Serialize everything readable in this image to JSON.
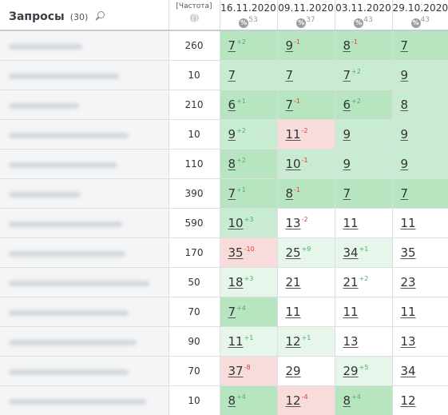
{
  "header": {
    "queries_label": "Запросы",
    "queries_count": "(30)",
    "frequency_label": "[Частота]",
    "dates": [
      {
        "date": "16.11.2020",
        "visibility": "53"
      },
      {
        "date": "09.11.2020",
        "visibility": "37"
      },
      {
        "date": "03.11.2020",
        "visibility": "43"
      },
      {
        "date": "29.10.2020",
        "visibility": "43"
      }
    ],
    "percent_symbol": "%"
  },
  "rows": [
    {
      "freq": "260",
      "cells": [
        {
          "v": "7",
          "d": "+2",
          "bg": "g1"
        },
        {
          "v": "9",
          "d": "-1",
          "bg": "g1"
        },
        {
          "v": "8",
          "d": "-1",
          "bg": "g1"
        },
        {
          "v": "7",
          "d": "",
          "bg": "g1"
        }
      ]
    },
    {
      "freq": "10",
      "cells": [
        {
          "v": "7",
          "d": "",
          "bg": "g2"
        },
        {
          "v": "7",
          "d": "",
          "bg": "g2"
        },
        {
          "v": "7",
          "d": "+2",
          "bg": "g2"
        },
        {
          "v": "9",
          "d": "",
          "bg": "g2"
        }
      ]
    },
    {
      "freq": "210",
      "cells": [
        {
          "v": "6",
          "d": "+1",
          "bg": "g1"
        },
        {
          "v": "7",
          "d": "-1",
          "bg": "g1"
        },
        {
          "v": "6",
          "d": "+2",
          "bg": "g1"
        },
        {
          "v": "8",
          "d": "",
          "bg": "g2"
        }
      ]
    },
    {
      "freq": "10",
      "cells": [
        {
          "v": "9",
          "d": "+2",
          "bg": "g2"
        },
        {
          "v": "11",
          "d": "-2",
          "bg": "r"
        },
        {
          "v": "9",
          "d": "",
          "bg": "g2"
        },
        {
          "v": "9",
          "d": "",
          "bg": "g2"
        }
      ]
    },
    {
      "freq": "110",
      "cells": [
        {
          "v": "8",
          "d": "+2",
          "bg": "g1"
        },
        {
          "v": "10",
          "d": "-1",
          "bg": "g2"
        },
        {
          "v": "9",
          "d": "",
          "bg": "g2"
        },
        {
          "v": "9",
          "d": "",
          "bg": "g2"
        }
      ]
    },
    {
      "freq": "390",
      "cells": [
        {
          "v": "7",
          "d": "+1",
          "bg": "g1"
        },
        {
          "v": "8",
          "d": "-1",
          "bg": "g1"
        },
        {
          "v": "7",
          "d": "",
          "bg": "g1"
        },
        {
          "v": "7",
          "d": "",
          "bg": "g1"
        }
      ]
    },
    {
      "freq": "590",
      "cells": [
        {
          "v": "10",
          "d": "+3",
          "bg": "g2"
        },
        {
          "v": "13",
          "d": "-2",
          "bg": "w"
        },
        {
          "v": "11",
          "d": "",
          "bg": "w"
        },
        {
          "v": "11",
          "d": "",
          "bg": "w"
        }
      ]
    },
    {
      "freq": "170",
      "cells": [
        {
          "v": "35",
          "d": "-10",
          "bg": "r"
        },
        {
          "v": "25",
          "d": "+9",
          "bg": "g3"
        },
        {
          "v": "34",
          "d": "+1",
          "bg": "g3"
        },
        {
          "v": "35",
          "d": "",
          "bg": "w"
        }
      ]
    },
    {
      "freq": "50",
      "cells": [
        {
          "v": "18",
          "d": "+3",
          "bg": "g3"
        },
        {
          "v": "21",
          "d": "",
          "bg": "w"
        },
        {
          "v": "21",
          "d": "+2",
          "bg": "w"
        },
        {
          "v": "23",
          "d": "",
          "bg": "w"
        }
      ]
    },
    {
      "freq": "70",
      "cells": [
        {
          "v": "7",
          "d": "+4",
          "bg": "g1"
        },
        {
          "v": "11",
          "d": "",
          "bg": "w"
        },
        {
          "v": "11",
          "d": "",
          "bg": "w"
        },
        {
          "v": "11",
          "d": "",
          "bg": "w"
        }
      ]
    },
    {
      "freq": "90",
      "cells": [
        {
          "v": "11",
          "d": "+1",
          "bg": "g3"
        },
        {
          "v": "12",
          "d": "+1",
          "bg": "g3"
        },
        {
          "v": "13",
          "d": "",
          "bg": "w"
        },
        {
          "v": "13",
          "d": "",
          "bg": "w"
        }
      ]
    },
    {
      "freq": "70",
      "cells": [
        {
          "v": "37",
          "d": "-8",
          "bg": "r"
        },
        {
          "v": "29",
          "d": "",
          "bg": "w"
        },
        {
          "v": "29",
          "d": "+5",
          "bg": "g3"
        },
        {
          "v": "34",
          "d": "",
          "bg": "w"
        }
      ]
    },
    {
      "freq": "10",
      "cells": [
        {
          "v": "8",
          "d": "+4",
          "bg": "g1"
        },
        {
          "v": "12",
          "d": "-4",
          "bg": "r"
        },
        {
          "v": "8",
          "d": "+4",
          "bg": "g1"
        },
        {
          "v": "12",
          "d": "",
          "bg": "w"
        }
      ]
    }
  ]
}
